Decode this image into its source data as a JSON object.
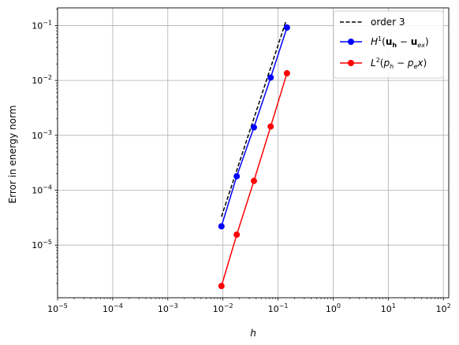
{
  "chart_data": {
    "type": "line",
    "xscale": "log",
    "yscale": "log",
    "xlim": [
      1e-05,
      125
    ],
    "ylim": [
      1.1e-06,
      0.21
    ],
    "grid": true,
    "xlabel": "h",
    "ylabel": "Error in energy norm",
    "legend_position": "upper right",
    "x_ticks": [
      {
        "value": 1e-05,
        "base": "10",
        "exp": "−5"
      },
      {
        "value": 0.0001,
        "base": "10",
        "exp": "−4"
      },
      {
        "value": 0.001,
        "base": "10",
        "exp": "−3"
      },
      {
        "value": 0.01,
        "base": "10",
        "exp": "−2"
      },
      {
        "value": 0.1,
        "base": "10",
        "exp": "−1"
      },
      {
        "value": 1,
        "base": "10",
        "exp": "0"
      },
      {
        "value": 10,
        "base": "10",
        "exp": "1"
      },
      {
        "value": 100,
        "base": "10",
        "exp": "2"
      }
    ],
    "y_ticks": [
      {
        "value": 1e-05,
        "base": "10",
        "exp": "−5"
      },
      {
        "value": 0.0001,
        "base": "10",
        "exp": "−4"
      },
      {
        "value": 0.001,
        "base": "10",
        "exp": "−3"
      },
      {
        "value": 0.01,
        "base": "10",
        "exp": "−2"
      },
      {
        "value": 0.1,
        "base": "10",
        "exp": "−1"
      }
    ],
    "series": [
      {
        "name": "order 3",
        "color": "#000000",
        "dash": true,
        "marker": false,
        "x": [
          0.0094,
          0.14
        ],
        "y": [
          3.3e-05,
          0.122
        ]
      },
      {
        "name": "H¹(u_h − u_ex)",
        "color": "#0000ff",
        "dash": false,
        "marker": true,
        "x": [
          0.0094,
          0.0178,
          0.0365,
          0.0735,
          0.145
        ],
        "y": [
          2.2e-05,
          0.00018,
          0.0014,
          0.0113,
          0.092
        ]
      },
      {
        "name": "L²(p_h − p_e x)",
        "color": "#ff0000",
        "dash": false,
        "marker": true,
        "x": [
          0.0094,
          0.0178,
          0.0365,
          0.0735,
          0.145
        ],
        "y": [
          1.8e-06,
          1.55e-05,
          0.000148,
          0.00145,
          0.0135
        ]
      }
    ],
    "legend": {
      "order3": "order 3",
      "h1_base": "H",
      "h1_sup": "1",
      "h1_open": "(",
      "h1_u1": "u",
      "h1_sub1": "h",
      "h1_minus": " − ",
      "h1_u2": "u",
      "h1_sub2": "ex",
      "h1_close": ")",
      "l2_base": "L",
      "l2_sup": "2",
      "l2_open": "(",
      "l2_p1": "p",
      "l2_sub1": "h",
      "l2_minus": " − ",
      "l2_p2": "p",
      "l2_sub2": "e",
      "l2_x": "x",
      "l2_close": ")"
    }
  }
}
